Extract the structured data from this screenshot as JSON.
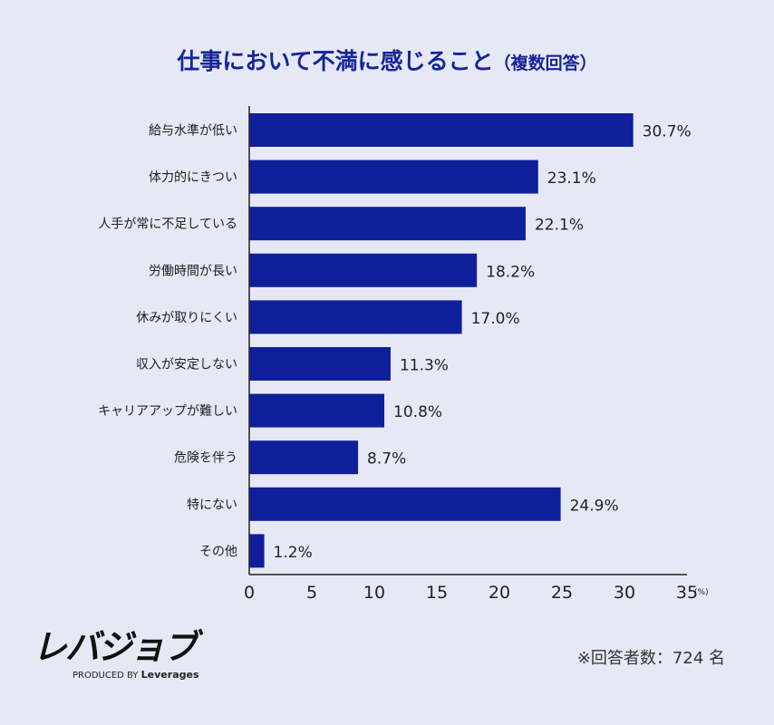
{
  "chart_data": {
    "type": "bar",
    "orientation": "horizontal",
    "title": "仕事において不満に感じること",
    "subtitle": "（複数回答）",
    "categories": [
      "給与水準が低い",
      "体力的にきつい",
      "人手が常に不足している",
      "労働時間が長い",
      "休みが取りにくい",
      "収入が安定しない",
      "キャリアアップが難しい",
      "危険を伴う",
      "特にない",
      "その他"
    ],
    "values": [
      30.7,
      23.1,
      22.1,
      18.2,
      17.0,
      11.3,
      10.8,
      8.7,
      24.9,
      1.2
    ],
    "data_labels": [
      "30.7%",
      "23.1%",
      "22.1%",
      "18.2%",
      "17.0%",
      "11.3%",
      "10.8%",
      "8.7%",
      "24.9%",
      "1.2%"
    ],
    "xlim": [
      0,
      35
    ],
    "xticks": [
      "0",
      "5",
      "10",
      "15",
      "20",
      "25",
      "30",
      "35"
    ],
    "xunit": "(%)",
    "grid": false,
    "bar_color": "#0f1f9c"
  },
  "footer": {
    "logo": "レバジョブ",
    "logo_sub_prefix": "PRODUCED BY",
    "logo_sub_brand": "Leverages",
    "note": "※回答者数：724 名"
  }
}
